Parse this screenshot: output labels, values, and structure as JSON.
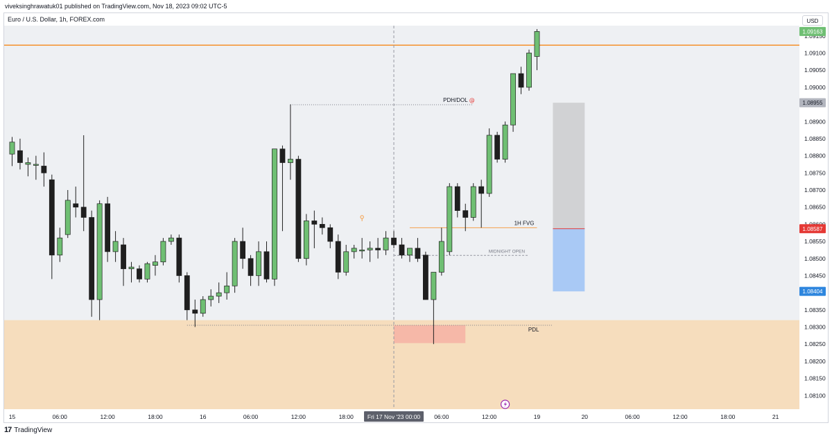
{
  "header": {
    "published_line": "viveksinghrawatuk01 published on TradingView.com, Nov 18, 2023 09:02 UTC-5"
  },
  "chart_header": {
    "symbol_title": "Euro / U.S. Dollar, 1h, FOREX.com",
    "currency_button": "USD"
  },
  "footer": {
    "brand": "TradingView",
    "logo_icon": "tradingview-logo-icon"
  },
  "colors": {
    "bull": "#6fbf73",
    "bear": "#1f1f1f",
    "background": "#eef0f3",
    "horizontal_line": "#f57c00",
    "discount_zone": "#f6ddbd",
    "pdl_box": "#f6b8a8",
    "gray_box": "#d1d2d4",
    "blue_box": "#a9c9f5",
    "red_line": "#e53935"
  },
  "chart_data": {
    "type": "candlestick",
    "symbol": "Euro / U.S. Dollar",
    "timeframe": "1h",
    "source": "FOREX.com",
    "y_axis": {
      "ticks": [
        "1.08100",
        "1.08150",
        "1.08200",
        "1.08250",
        "1.08300",
        "1.08350",
        "1.08400",
        "1.08450",
        "1.08500",
        "1.08550",
        "1.08600",
        "1.08650",
        "1.08700",
        "1.08750",
        "1.08800",
        "1.08850",
        "1.08900",
        "1.08950",
        "1.09000",
        "1.09050",
        "1.09100",
        "1.09150"
      ],
      "range": [
        1.0806,
        1.0918
      ]
    },
    "x_axis": {
      "ticks": [
        {
          "label": "15",
          "x": 0
        },
        {
          "label": "06:00",
          "x": 6
        },
        {
          "label": "12:00",
          "x": 12
        },
        {
          "label": "18:00",
          "x": 18
        },
        {
          "label": "16",
          "x": 24
        },
        {
          "label": "06:00",
          "x": 30
        },
        {
          "label": "12:00",
          "x": 36
        },
        {
          "label": "18:00",
          "x": 42
        },
        {
          "label": "00:00",
          "x": 48
        },
        {
          "label": "06:00",
          "x": 54
        },
        {
          "label": "12:00",
          "x": 60
        },
        {
          "label": "19",
          "x": 66
        },
        {
          "label": "20",
          "x": 72
        },
        {
          "label": "06:00",
          "x": 78
        },
        {
          "label": "12:00",
          "x": 84
        },
        {
          "label": "18:00",
          "x": 90
        },
        {
          "label": "21",
          "x": 96
        }
      ],
      "crosshair_label": "Fri 17 Nov '23   00:00",
      "crosshair_x": 48,
      "range": [
        -1,
        99
      ]
    },
    "price_tags": [
      {
        "value": "1.09163",
        "price": 1.09163,
        "color": "#6fbf73",
        "text_color": "#ffffff"
      },
      {
        "value": "1.08955",
        "price": 1.08955,
        "color": "#b2b5be",
        "text_color": "#131722"
      },
      {
        "value": "1.08587",
        "price": 1.08587,
        "color": "#e53935",
        "text_color": "#ffffff"
      },
      {
        "value": "1.08404",
        "price": 1.08404,
        "color": "#2e86de",
        "text_color": "#ffffff"
      }
    ],
    "annotations": [
      {
        "label": "PDH/DOL",
        "price": 1.08949,
        "x_start": 35,
        "x_end": 58,
        "style": "dotted"
      },
      {
        "label": "1H FVG",
        "price": 1.0859,
        "x_start": 50,
        "x_end": 66,
        "style": "solid-orange"
      },
      {
        "label": "MIDNIGHT OPEN",
        "price": 1.08509,
        "x_start": 48,
        "x_end": 65,
        "style": "dashed"
      },
      {
        "label": "PDL",
        "price": 1.08305,
        "x_start": 22,
        "x_end": 68,
        "style": "dotted"
      }
    ],
    "horizontal_line": {
      "price": 1.09123
    },
    "zones": {
      "discount": {
        "price_top": 1.0832,
        "price_bottom": 1.0806
      },
      "pdl_box": {
        "price_top": 1.08305,
        "price_bottom": 1.08253,
        "x_start": 48,
        "x_end": 57
      },
      "gray_box": {
        "price_top": 1.08955,
        "price_bottom": 1.08587,
        "x_start": 68,
        "x_end": 72
      },
      "blue_box": {
        "price_top": 1.08587,
        "price_bottom": 1.08404,
        "x_start": 68,
        "x_end": 72
      }
    },
    "candles": [
      {
        "o": 1.08805,
        "h": 1.08855,
        "l": 1.0877,
        "c": 1.0884
      },
      {
        "o": 1.08815,
        "h": 1.0885,
        "l": 1.0876,
        "c": 1.0878
      },
      {
        "o": 1.08775,
        "h": 1.08795,
        "l": 1.0874,
        "c": 1.0878
      },
      {
        "o": 1.08775,
        "h": 1.088,
        "l": 1.0873,
        "c": 1.08775
      },
      {
        "o": 1.0877,
        "h": 1.0881,
        "l": 1.0871,
        "c": 1.0875
      },
      {
        "o": 1.0873,
        "h": 1.08745,
        "l": 1.0844,
        "c": 1.0851
      },
      {
        "o": 1.0851,
        "h": 1.0859,
        "l": 1.0849,
        "c": 1.0856
      },
      {
        "o": 1.0857,
        "h": 1.087,
        "l": 1.0856,
        "c": 1.0867
      },
      {
        "o": 1.0866,
        "h": 1.0871,
        "l": 1.0862,
        "c": 1.0865
      },
      {
        "o": 1.0865,
        "h": 1.0886,
        "l": 1.0858,
        "c": 1.0862
      },
      {
        "o": 1.0862,
        "h": 1.0864,
        "l": 1.0833,
        "c": 1.0838
      },
      {
        "o": 1.0838,
        "h": 1.0867,
        "l": 1.0832,
        "c": 1.0866
      },
      {
        "o": 1.0866,
        "h": 1.0868,
        "l": 1.0849,
        "c": 1.0852
      },
      {
        "o": 1.0852,
        "h": 1.0858,
        "l": 1.0849,
        "c": 1.0855
      },
      {
        "o": 1.0854,
        "h": 1.0856,
        "l": 1.0842,
        "c": 1.0847
      },
      {
        "o": 1.0847,
        "h": 1.0849,
        "l": 1.0843,
        "c": 1.08475
      },
      {
        "o": 1.0847,
        "h": 1.0848,
        "l": 1.0843,
        "c": 1.0844
      },
      {
        "o": 1.0844,
        "h": 1.0849,
        "l": 1.0843,
        "c": 1.08485
      },
      {
        "o": 1.0848,
        "h": 1.0851,
        "l": 1.0845,
        "c": 1.0849
      },
      {
        "o": 1.0849,
        "h": 1.0856,
        "l": 1.0848,
        "c": 1.0855
      },
      {
        "o": 1.0855,
        "h": 1.0857,
        "l": 1.0854,
        "c": 1.0856
      },
      {
        "o": 1.0856,
        "h": 1.0857,
        "l": 1.0843,
        "c": 1.0845
      },
      {
        "o": 1.0845,
        "h": 1.0846,
        "l": 1.0832,
        "c": 1.0835
      },
      {
        "o": 1.0835,
        "h": 1.0838,
        "l": 1.083,
        "c": 1.0834
      },
      {
        "o": 1.0834,
        "h": 1.0839,
        "l": 1.0833,
        "c": 1.0838
      },
      {
        "o": 1.0838,
        "h": 1.0841,
        "l": 1.0836,
        "c": 1.0839
      },
      {
        "o": 1.0839,
        "h": 1.0843,
        "l": 1.0837,
        "c": 1.084
      },
      {
        "o": 1.084,
        "h": 1.0846,
        "l": 1.0838,
        "c": 1.0842
      },
      {
        "o": 1.0842,
        "h": 1.0856,
        "l": 1.084,
        "c": 1.0855
      },
      {
        "o": 1.0855,
        "h": 1.0859,
        "l": 1.0847,
        "c": 1.085
      },
      {
        "o": 1.085,
        "h": 1.0851,
        "l": 1.0842,
        "c": 1.0845
      },
      {
        "o": 1.0845,
        "h": 1.0855,
        "l": 1.0842,
        "c": 1.0852
      },
      {
        "o": 1.0852,
        "h": 1.0855,
        "l": 1.0843,
        "c": 1.0844
      },
      {
        "o": 1.0844,
        "h": 1.0882,
        "l": 1.0842,
        "c": 1.0882
      },
      {
        "o": 1.0882,
        "h": 1.0883,
        "l": 1.0858,
        "c": 1.0878
      },
      {
        "o": 1.0878,
        "h": 1.0895,
        "l": 1.0873,
        "c": 1.0879
      },
      {
        "o": 1.0879,
        "h": 1.088,
        "l": 1.0849,
        "c": 1.085
      },
      {
        "o": 1.085,
        "h": 1.0863,
        "l": 1.0848,
        "c": 1.0861
      },
      {
        "o": 1.0861,
        "h": 1.0864,
        "l": 1.0853,
        "c": 1.086
      },
      {
        "o": 1.086,
        "h": 1.0862,
        "l": 1.0857,
        "c": 1.0859
      },
      {
        "o": 1.0859,
        "h": 1.086,
        "l": 1.0853,
        "c": 1.0855
      },
      {
        "o": 1.0855,
        "h": 1.0857,
        "l": 1.0844,
        "c": 1.0846
      },
      {
        "o": 1.0846,
        "h": 1.0854,
        "l": 1.0845,
        "c": 1.0852
      },
      {
        "o": 1.0852,
        "h": 1.0854,
        "l": 1.085,
        "c": 1.0853
      },
      {
        "o": 1.08525,
        "h": 1.0856,
        "l": 1.085,
        "c": 1.08525
      },
      {
        "o": 1.08525,
        "h": 1.0855,
        "l": 1.0849,
        "c": 1.0853
      },
      {
        "o": 1.0853,
        "h": 1.0856,
        "l": 1.085,
        "c": 1.08525
      },
      {
        "o": 1.08525,
        "h": 1.0858,
        "l": 1.0851,
        "c": 1.0856
      },
      {
        "o": 1.0856,
        "h": 1.0858,
        "l": 1.0853,
        "c": 1.0854
      },
      {
        "o": 1.0854,
        "h": 1.0856,
        "l": 1.085,
        "c": 1.0851
      },
      {
        "o": 1.0851,
        "h": 1.0853,
        "l": 1.0849,
        "c": 1.0853
      },
      {
        "o": 1.0853,
        "h": 1.0856,
        "l": 1.0849,
        "c": 1.085
      },
      {
        "o": 1.0851,
        "h": 1.0852,
        "l": 1.0838,
        "c": 1.0838
      },
      {
        "o": 1.0838,
        "h": 1.0846,
        "l": 1.0825,
        "c": 1.0846
      },
      {
        "o": 1.0846,
        "h": 1.0859,
        "l": 1.0845,
        "c": 1.0855
      },
      {
        "o": 1.0852,
        "h": 1.0872,
        "l": 1.0851,
        "c": 1.0871
      },
      {
        "o": 1.0871,
        "h": 1.0872,
        "l": 1.0862,
        "c": 1.0864
      },
      {
        "o": 1.0864,
        "h": 1.0866,
        "l": 1.0858,
        "c": 1.0862
      },
      {
        "o": 1.0862,
        "h": 1.0872,
        "l": 1.0861,
        "c": 1.0871
      },
      {
        "o": 1.0871,
        "h": 1.0873,
        "l": 1.0859,
        "c": 1.0869
      },
      {
        "o": 1.0869,
        "h": 1.0888,
        "l": 1.0868,
        "c": 1.0886
      },
      {
        "o": 1.0886,
        "h": 1.0887,
        "l": 1.0878,
        "c": 1.0879
      },
      {
        "o": 1.0879,
        "h": 1.089,
        "l": 1.0878,
        "c": 1.0889
      },
      {
        "o": 1.0889,
        "h": 1.0904,
        "l": 1.0887,
        "c": 1.0904
      },
      {
        "o": 1.0904,
        "h": 1.0906,
        "l": 1.0898,
        "c": 1.09
      },
      {
        "o": 1.09,
        "h": 1.0911,
        "l": 1.0899,
        "c": 1.091
      },
      {
        "o": 1.0909,
        "h": 1.0917,
        "l": 1.0905,
        "c": 1.09163
      }
    ]
  }
}
